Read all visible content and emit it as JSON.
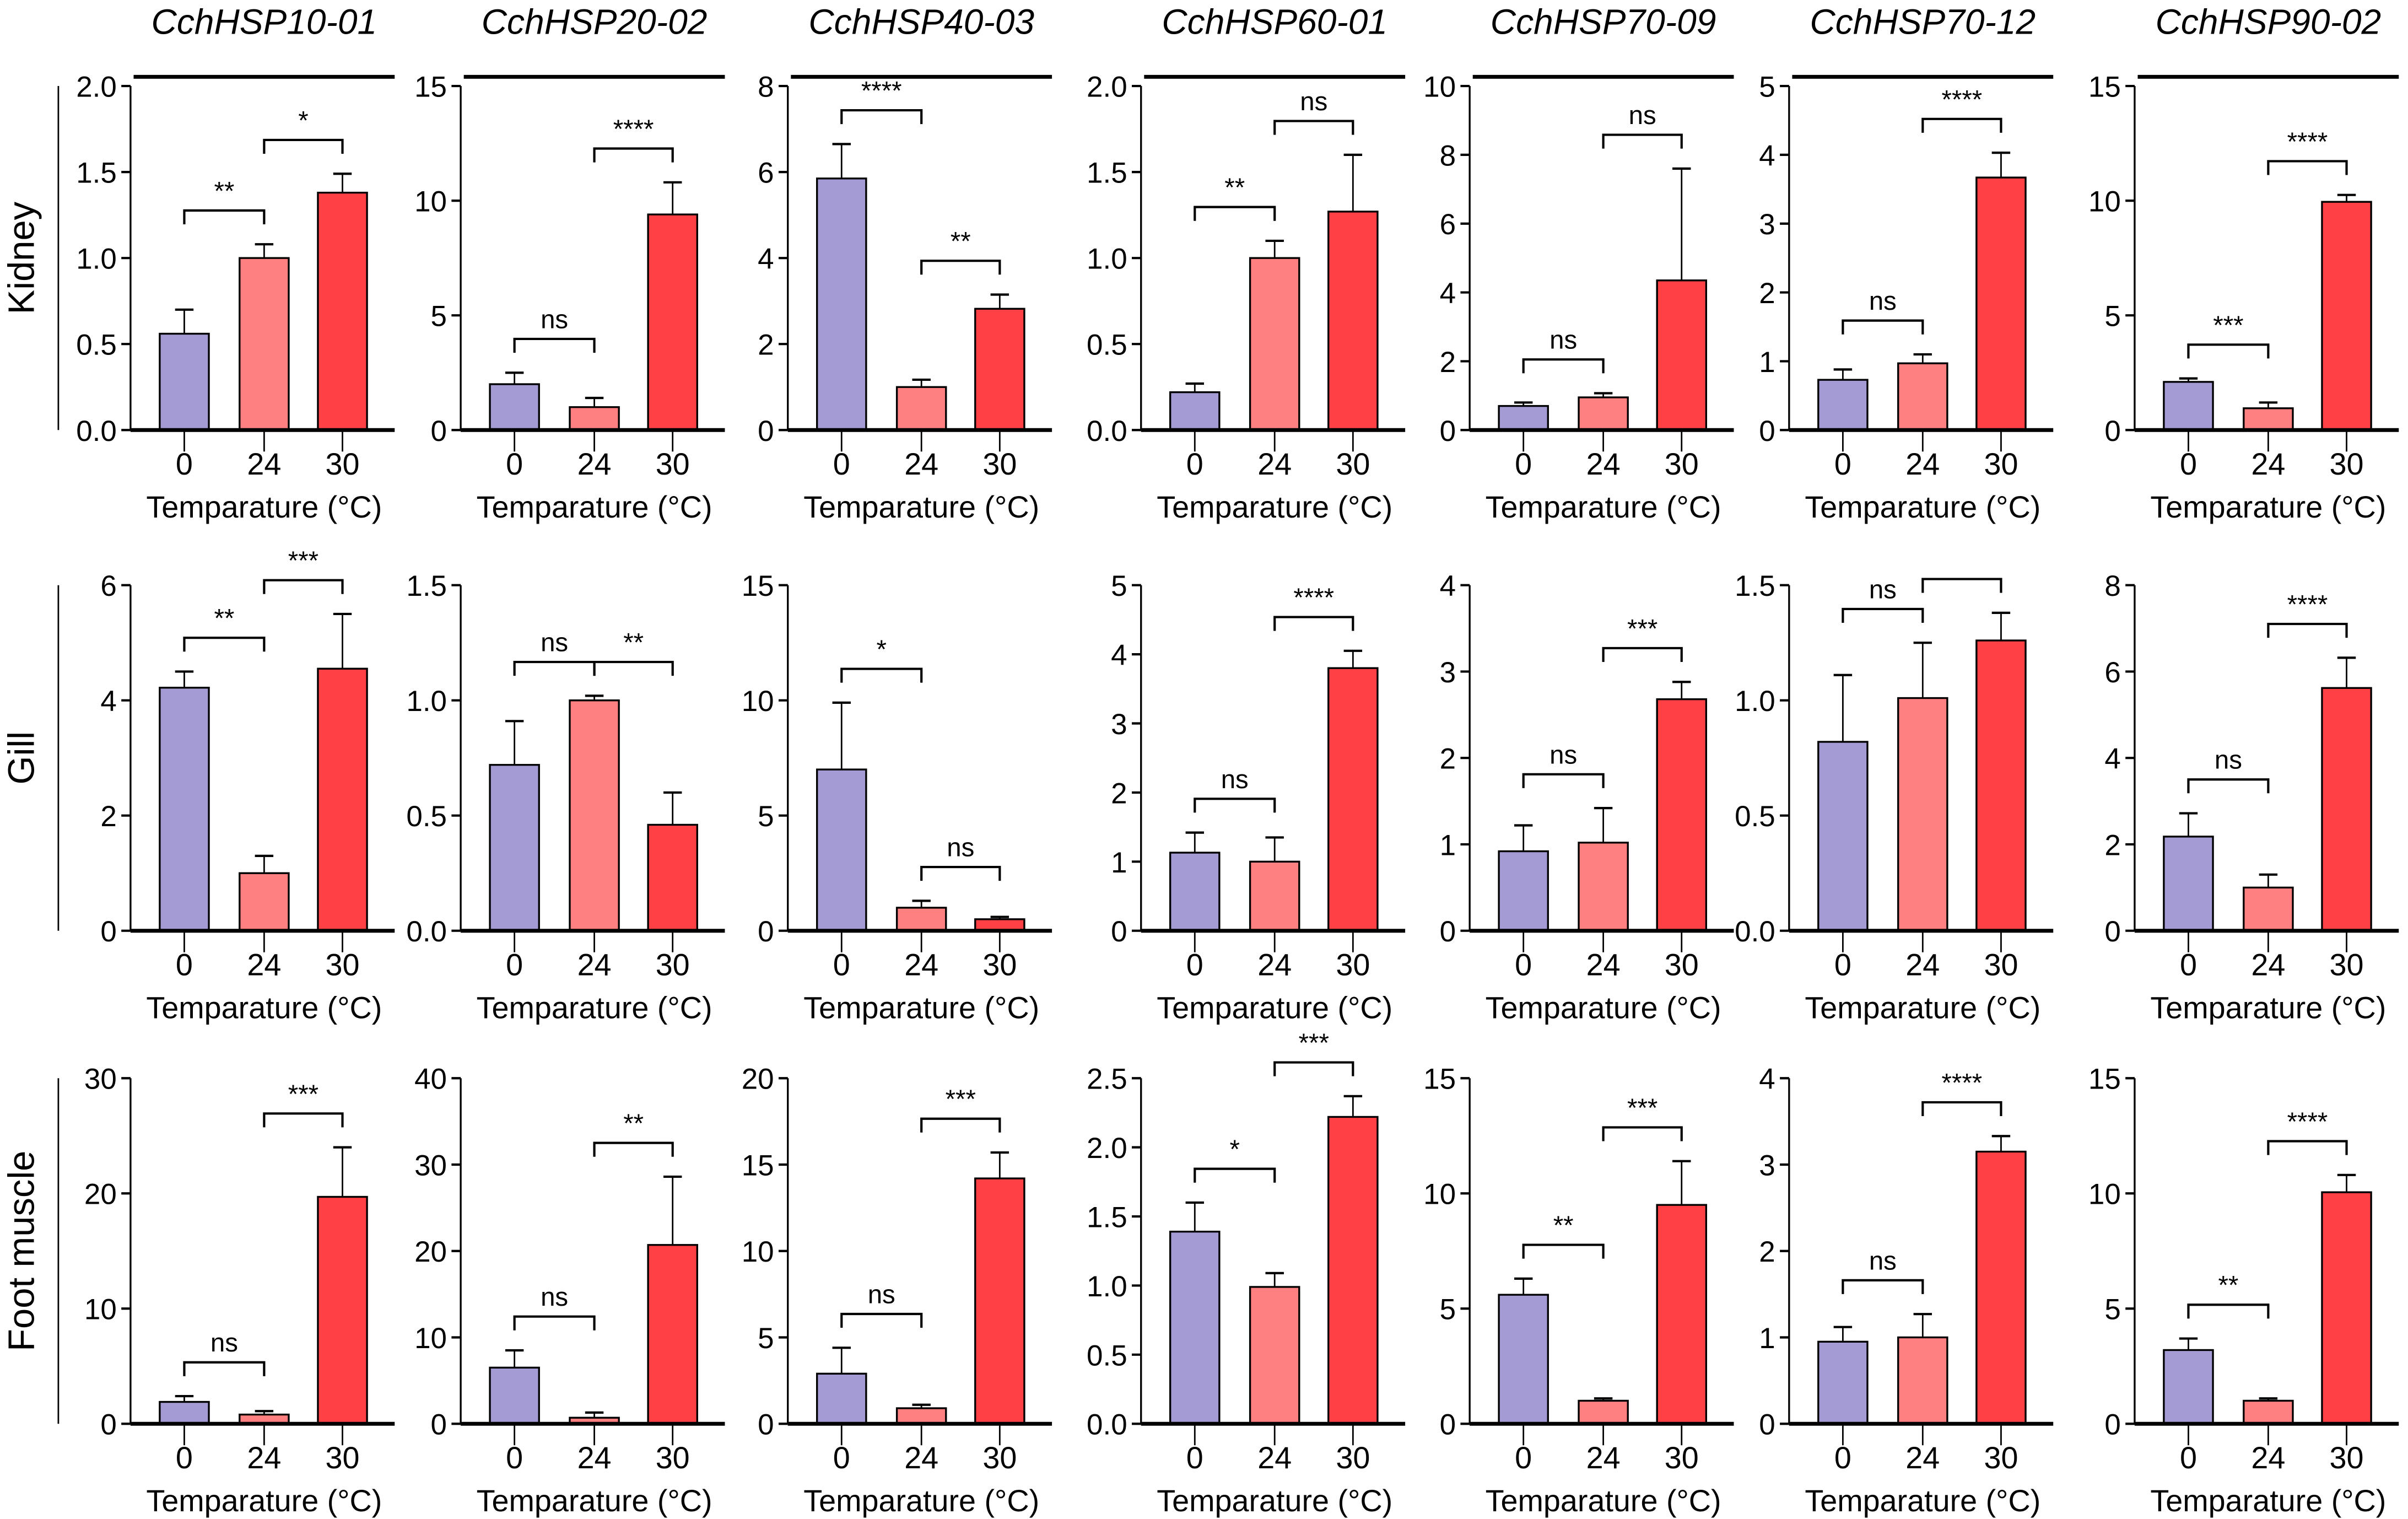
{
  "chart_data": {
    "type": "bar",
    "layout": "grid of bar charts, 3 rows (tissues) x 7 columns (genes)",
    "genes": [
      "CchHSP10-01",
      "CchHSP20-02",
      "CchHSP40-03",
      "CchHSP60-01",
      "CchHSP70-09",
      "CchHSP70-12",
      "CchHSP90-02"
    ],
    "tissues": [
      "Kidney",
      "Gill",
      "Foot muscle"
    ],
    "categories": [
      "0",
      "24",
      "30"
    ],
    "xlabel": "Temparature (°C)",
    "colors": {
      "0": "#a59bd4",
      "24": "#ff8080",
      "30": "#ff4044"
    },
    "error_bars": "upper (mean + error)",
    "grid": false,
    "panels": [
      [
        {
          "ylim": [
            0,
            2.0
          ],
          "ticks": [
            "0.0",
            "0.5",
            "1.0",
            "1.5",
            "2.0"
          ],
          "values": [
            0.56,
            1.0,
            1.38
          ],
          "err_top": [
            0.7,
            1.08,
            1.49
          ],
          "brackets": [
            {
              "from": 0,
              "to": 1,
              "label": "**"
            },
            {
              "from": 1,
              "to": 2,
              "label": "*"
            }
          ]
        },
        {
          "ylim": [
            0,
            15
          ],
          "ticks": [
            "0",
            "5",
            "10",
            "15"
          ],
          "values": [
            2.0,
            1.0,
            9.4
          ],
          "err_top": [
            2.5,
            1.4,
            10.8
          ],
          "brackets": [
            {
              "from": 0,
              "to": 1,
              "label": "ns"
            },
            {
              "from": 1,
              "to": 2,
              "label": "****"
            }
          ]
        },
        {
          "ylim": [
            0,
            8
          ],
          "ticks": [
            "0",
            "2",
            "4",
            "6",
            "8"
          ],
          "values": [
            5.85,
            1.0,
            2.82
          ],
          "err_top": [
            6.65,
            1.17,
            3.15
          ],
          "brackets": [
            {
              "from": 0,
              "to": 1,
              "label": "****"
            },
            {
              "from": 1,
              "to": 2,
              "label": "**"
            }
          ]
        },
        {
          "ylim": [
            0,
            2.0
          ],
          "ticks": [
            "0.0",
            "0.5",
            "1.0",
            "1.5",
            "2.0"
          ],
          "values": [
            0.22,
            1.0,
            1.27
          ],
          "err_top": [
            0.27,
            1.1,
            1.6
          ],
          "brackets": [
            {
              "from": 0,
              "to": 1,
              "label": "**"
            },
            {
              "from": 1,
              "to": 2,
              "label": "ns"
            }
          ]
        },
        {
          "ylim": [
            0,
            10
          ],
          "ticks": [
            "0",
            "2",
            "4",
            "6",
            "8",
            "10"
          ],
          "values": [
            0.7,
            0.95,
            4.35
          ],
          "err_top": [
            0.8,
            1.07,
            7.6
          ],
          "brackets": [
            {
              "from": 0,
              "to": 1,
              "label": "ns"
            },
            {
              "from": 1,
              "to": 2,
              "label": "ns"
            }
          ]
        },
        {
          "ylim": [
            0,
            5
          ],
          "ticks": [
            "0",
            "1",
            "2",
            "3",
            "4",
            "5"
          ],
          "values": [
            0.73,
            0.97,
            3.67
          ],
          "err_top": [
            0.88,
            1.1,
            4.03
          ],
          "brackets": [
            {
              "from": 0,
              "to": 1,
              "label": "ns"
            },
            {
              "from": 1,
              "to": 2,
              "label": "****"
            }
          ]
        },
        {
          "ylim": [
            0,
            15
          ],
          "ticks": [
            "0",
            "5",
            "10",
            "15"
          ],
          "values": [
            2.1,
            0.95,
            9.95
          ],
          "err_top": [
            2.25,
            1.2,
            10.25
          ],
          "brackets": [
            {
              "from": 0,
              "to": 1,
              "label": "***"
            },
            {
              "from": 1,
              "to": 2,
              "label": "****"
            }
          ]
        }
      ],
      [
        {
          "ylim": [
            0,
            6
          ],
          "ticks": [
            "0",
            "2",
            "4",
            "6"
          ],
          "values": [
            4.22,
            1.0,
            4.55
          ],
          "err_top": [
            4.5,
            1.3,
            5.5
          ],
          "brackets": [
            {
              "from": 0,
              "to": 1,
              "label": "**"
            },
            {
              "from": 1,
              "to": 2,
              "label": "***"
            }
          ]
        },
        {
          "ylim": [
            0,
            1.5
          ],
          "ticks": [
            "0.0",
            "0.5",
            "1.0",
            "1.5"
          ],
          "values": [
            0.72,
            1.0,
            0.46
          ],
          "err_top": [
            0.91,
            1.02,
            0.6
          ],
          "brackets": [
            {
              "from": 0,
              "to": 1,
              "label": "ns"
            },
            {
              "from": 1,
              "to": 2,
              "label": "**"
            }
          ]
        },
        {
          "ylim": [
            0,
            15
          ],
          "ticks": [
            "0",
            "5",
            "10",
            "15"
          ],
          "values": [
            7.0,
            1.0,
            0.5
          ],
          "err_top": [
            9.9,
            1.3,
            0.6
          ],
          "brackets": [
            {
              "from": 0,
              "to": 1,
              "label": "*"
            },
            {
              "from": 1,
              "to": 2,
              "label": "ns"
            }
          ]
        },
        {
          "ylim": [
            0,
            5
          ],
          "ticks": [
            "0",
            "1",
            "2",
            "3",
            "4",
            "5"
          ],
          "values": [
            1.13,
            1.0,
            3.8
          ],
          "err_top": [
            1.42,
            1.35,
            4.05
          ],
          "brackets": [
            {
              "from": 0,
              "to": 1,
              "label": "ns"
            },
            {
              "from": 1,
              "to": 2,
              "label": "****"
            }
          ]
        },
        {
          "ylim": [
            0,
            4
          ],
          "ticks": [
            "0",
            "1",
            "2",
            "3",
            "4"
          ],
          "values": [
            0.92,
            1.02,
            2.68
          ],
          "err_top": [
            1.22,
            1.42,
            2.88
          ],
          "brackets": [
            {
              "from": 0,
              "to": 1,
              "label": "ns"
            },
            {
              "from": 1,
              "to": 2,
              "label": "***"
            }
          ]
        },
        {
          "ylim": [
            0,
            1.5
          ],
          "ticks": [
            "0.0",
            "0.5",
            "1.0",
            "1.5"
          ],
          "values": [
            0.82,
            1.01,
            1.26
          ],
          "err_top": [
            1.11,
            1.25,
            1.38
          ],
          "brackets": [
            {
              "from": 0,
              "to": 1,
              "label": "ns"
            },
            {
              "from": 1,
              "to": 2,
              "label": ""
            }
          ]
        },
        {
          "ylim": [
            0,
            8
          ],
          "ticks": [
            "0",
            "2",
            "4",
            "6",
            "8"
          ],
          "values": [
            2.18,
            1.0,
            5.62
          ],
          "err_top": [
            2.72,
            1.3,
            6.32
          ],
          "brackets": [
            {
              "from": 0,
              "to": 1,
              "label": "ns"
            },
            {
              "from": 1,
              "to": 2,
              "label": "****"
            }
          ]
        }
      ],
      [
        {
          "ylim": [
            0,
            30
          ],
          "ticks": [
            "0",
            "10",
            "20",
            "30"
          ],
          "values": [
            1.9,
            0.8,
            19.7
          ],
          "err_top": [
            2.4,
            1.1,
            24.0
          ],
          "brackets": [
            {
              "from": 0,
              "to": 1,
              "label": "ns"
            },
            {
              "from": 1,
              "to": 2,
              "label": "***"
            }
          ]
        },
        {
          "ylim": [
            0,
            40
          ],
          "ticks": [
            "0",
            "10",
            "20",
            "30",
            "40"
          ],
          "values": [
            6.5,
            0.7,
            20.7
          ],
          "err_top": [
            8.5,
            1.3,
            28.6
          ],
          "brackets": [
            {
              "from": 0,
              "to": 1,
              "label": "ns"
            },
            {
              "from": 1,
              "to": 2,
              "label": "**"
            }
          ]
        },
        {
          "ylim": [
            0,
            20
          ],
          "ticks": [
            "0",
            "5",
            "10",
            "15",
            "20"
          ],
          "values": [
            2.9,
            0.9,
            14.2
          ],
          "err_top": [
            4.4,
            1.1,
            15.7
          ],
          "brackets": [
            {
              "from": 0,
              "to": 1,
              "label": "ns"
            },
            {
              "from": 1,
              "to": 2,
              "label": "***"
            }
          ]
        },
        {
          "ylim": [
            0,
            2.5
          ],
          "ticks": [
            "0.0",
            "0.5",
            "1.0",
            "1.5",
            "2.0",
            "2.5"
          ],
          "values": [
            1.39,
            0.99,
            2.22
          ],
          "err_top": [
            1.6,
            1.09,
            2.37
          ],
          "brackets": [
            {
              "from": 0,
              "to": 1,
              "label": "*"
            },
            {
              "from": 1,
              "to": 2,
              "label": "***"
            }
          ]
        },
        {
          "ylim": [
            0,
            15
          ],
          "ticks": [
            "0",
            "5",
            "10",
            "15"
          ],
          "values": [
            5.6,
            1.0,
            9.5
          ],
          "err_top": [
            6.3,
            1.1,
            11.4
          ],
          "brackets": [
            {
              "from": 0,
              "to": 1,
              "label": "**"
            },
            {
              "from": 1,
              "to": 2,
              "label": "***"
            }
          ]
        },
        {
          "ylim": [
            0,
            4
          ],
          "ticks": [
            "0",
            "1",
            "2",
            "3",
            "4"
          ],
          "values": [
            0.95,
            1.0,
            3.15
          ],
          "err_top": [
            1.12,
            1.27,
            3.33
          ],
          "brackets": [
            {
              "from": 0,
              "to": 1,
              "label": "ns"
            },
            {
              "from": 1,
              "to": 2,
              "label": "****"
            }
          ]
        },
        {
          "ylim": [
            0,
            15
          ],
          "ticks": [
            "0",
            "5",
            "10",
            "15"
          ],
          "values": [
            3.2,
            1.0,
            10.05
          ],
          "err_top": [
            3.7,
            1.1,
            10.8
          ],
          "brackets": [
            {
              "from": 0,
              "to": 1,
              "label": "**"
            },
            {
              "from": 1,
              "to": 2,
              "label": "****"
            }
          ]
        }
      ]
    ]
  }
}
